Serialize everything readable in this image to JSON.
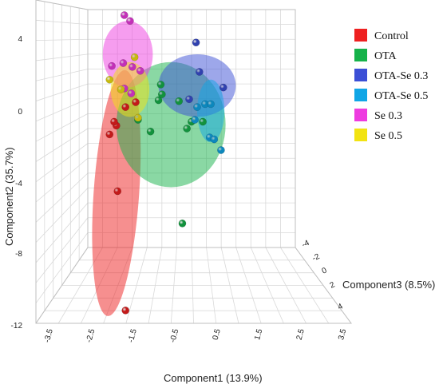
{
  "chart_data": {
    "type": "scatter",
    "title": "",
    "xlabel": "Component1 (13.9%)",
    "ylabel": "Component2 (35.7%)",
    "zlabel": "Component3 (8.5%)",
    "x_ticks": [
      "-3.5",
      "-2.5",
      "-1.5",
      "-0.5",
      "0.5",
      "1.5",
      "2.5",
      "3.5"
    ],
    "y_ticks": [
      "4",
      "0",
      "-4",
      "-8",
      "-12"
    ],
    "z_ticks": [
      "-4",
      "-2",
      "0",
      "2",
      "4"
    ],
    "xlim": [
      -3.5,
      3.5
    ],
    "ylim": [
      -12,
      4
    ],
    "zlim": [
      -4,
      4
    ],
    "grid": true,
    "legend_position": "top-right",
    "series": [
      {
        "name": "Control",
        "color": "#ee2020",
        "ellipse": {
          "cx": -1.55,
          "cy": -4.2,
          "rx": 1.0,
          "ry": 6.3,
          "rot": 4
        },
        "points": [
          [
            -1.85,
            -1.2
          ],
          [
            -1.55,
            -0.75
          ],
          [
            -1.65,
            -0.55
          ],
          [
            -1.5,
            -4.1
          ],
          [
            -1.15,
            0.2
          ],
          [
            -1.15,
            -10.2
          ],
          [
            -0.7,
            0.45
          ]
        ]
      },
      {
        "name": "OTA",
        "color": "#16b24a",
        "ellipse": {
          "cx": 0.85,
          "cy": -0.7,
          "rx": 2.4,
          "ry": 3.2,
          "rot": 0
        },
        "points": [
          [
            -0.6,
            -0.45
          ],
          [
            0.3,
            0.55
          ],
          [
            0.4,
            1.35
          ],
          [
            0.45,
            0.85
          ],
          [
            -0.05,
            -1.05
          ],
          [
            1.2,
            0.5
          ],
          [
            1.55,
            -0.9
          ],
          [
            1.75,
            -0.55
          ],
          [
            2.25,
            -0.55
          ],
          [
            1.35,
            -5.75
          ]
        ]
      },
      {
        "name": "OTA-Se 0.3",
        "color": "#3b4fd6",
        "ellipse": {
          "cx": 2.0,
          "cy": 1.3,
          "rx": 1.7,
          "ry": 1.6,
          "rot": 0
        },
        "points": [
          [
            1.95,
            3.5
          ],
          [
            2.1,
            2.0
          ],
          [
            3.15,
            1.2
          ],
          [
            1.65,
            0.6
          ]
        ]
      },
      {
        "name": "OTA-Se 0.5",
        "color": "#10a6e6",
        "ellipse": {
          "cx": 2.6,
          "cy": 0.0,
          "rx": 0.6,
          "ry": 1.6,
          "rot": 0
        },
        "points": [
          [
            2.35,
            0.35
          ],
          [
            2.6,
            0.35
          ],
          [
            2.55,
            -1.35
          ],
          [
            2.75,
            -1.45
          ],
          [
            3.05,
            -2.0
          ],
          [
            2.0,
            0.2
          ],
          [
            1.9,
            -0.45
          ]
        ]
      },
      {
        "name": "Se 0.3",
        "color": "#ee3be0",
        "ellipse": {
          "cx": -1.05,
          "cy": 2.9,
          "rx": 1.1,
          "ry": 1.7,
          "rot": 0
        },
        "points": [
          [
            -1.2,
            4.9
          ],
          [
            -0.95,
            4.6
          ],
          [
            -1.75,
            2.3
          ],
          [
            -1.25,
            2.45
          ],
          [
            -0.85,
            2.25
          ],
          [
            -0.5,
            2.05
          ],
          [
            -1.2,
            1.15
          ],
          [
            -0.9,
            0.9
          ]
        ]
      },
      {
        "name": "Se 0.5",
        "color": "#f2e312",
        "ellipse": {
          "cx": -0.95,
          "cy": 1.1,
          "rx": 0.85,
          "ry": 1.4,
          "rot": 0
        },
        "points": [
          [
            -1.85,
            1.6
          ],
          [
            -1.35,
            1.1
          ],
          [
            -0.75,
            2.75
          ],
          [
            -0.6,
            -0.35
          ]
        ]
      }
    ]
  }
}
